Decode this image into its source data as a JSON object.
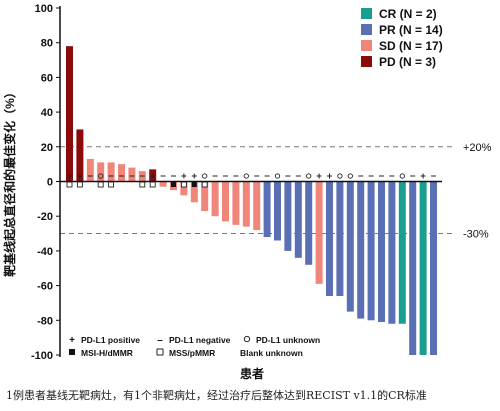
{
  "chart_data": {
    "type": "bar",
    "title": "",
    "ylabel": "靶基线起总直径和的最佳变化（%）",
    "xlabel": "患者",
    "ylim": [
      -100,
      100
    ],
    "yticks": [
      100,
      80,
      60,
      40,
      20,
      0,
      -20,
      -40,
      -60,
      -80,
      -100
    ],
    "reference_lines": [
      {
        "value": 20,
        "label": "+20%"
      },
      {
        "value": -30,
        "label": "-30%"
      }
    ],
    "legend": {
      "placement": "top-right",
      "entries": [
        {
          "key": "CR",
          "label": "CR (N = 2)",
          "color": "#1a9e8f"
        },
        {
          "key": "PR",
          "label": "PR (N = 14)",
          "color": "#5b6fb5"
        },
        {
          "key": "SD",
          "label": "SD (N = 17)",
          "color": "#f0857a"
        },
        {
          "key": "PD",
          "label": "PD (N = 3)",
          "color": "#8b0a0a"
        }
      ]
    },
    "bars": [
      {
        "value": 78,
        "response": "PD",
        "pdl1": "positive",
        "msi": "MSS/pMMR"
      },
      {
        "value": 30,
        "response": "PD",
        "pdl1": "positive",
        "msi": "MSS/pMMR"
      },
      {
        "value": 13,
        "response": "SD",
        "pdl1": "negative",
        "msi": ""
      },
      {
        "value": 11,
        "response": "SD",
        "pdl1": "unknown",
        "msi": "MSS/pMMR"
      },
      {
        "value": 11,
        "response": "SD",
        "pdl1": "negative",
        "msi": "MSS/pMMR"
      },
      {
        "value": 10,
        "response": "SD",
        "pdl1": "negative",
        "msi": ""
      },
      {
        "value": 8,
        "response": "SD",
        "pdl1": "negative",
        "msi": ""
      },
      {
        "value": 6,
        "response": "SD",
        "pdl1": "negative",
        "msi": "MSS/pMMR"
      },
      {
        "value": 7,
        "response": "PD",
        "pdl1": "positive",
        "msi": "MSS/pMMR"
      },
      {
        "value": -3,
        "response": "SD",
        "pdl1": "negative",
        "msi": ""
      },
      {
        "value": -5,
        "response": "SD",
        "pdl1": "negative",
        "msi": "MSI-H/dMMR"
      },
      {
        "value": -8,
        "response": "SD",
        "pdl1": "positive",
        "msi": "MSS/pMMR"
      },
      {
        "value": -12,
        "response": "SD",
        "pdl1": "positive",
        "msi": "MSI-H/dMMR"
      },
      {
        "value": -17,
        "response": "SD",
        "pdl1": "unknown",
        "msi": "MSS/pMMR"
      },
      {
        "value": -20,
        "response": "SD",
        "pdl1": "negative",
        "msi": ""
      },
      {
        "value": -23,
        "response": "SD",
        "pdl1": "negative",
        "msi": ""
      },
      {
        "value": -25,
        "response": "SD",
        "pdl1": "negative",
        "msi": ""
      },
      {
        "value": -26,
        "response": "SD",
        "pdl1": "unknown",
        "msi": ""
      },
      {
        "value": -28,
        "response": "SD",
        "pdl1": "negative",
        "msi": ""
      },
      {
        "value": -32,
        "response": "PR",
        "pdl1": "negative",
        "msi": ""
      },
      {
        "value": -34,
        "response": "PR",
        "pdl1": "unknown",
        "msi": ""
      },
      {
        "value": -40,
        "response": "PR",
        "pdl1": "negative",
        "msi": ""
      },
      {
        "value": -44,
        "response": "PR",
        "pdl1": "negative",
        "msi": ""
      },
      {
        "value": -48,
        "response": "PR",
        "pdl1": "unknown",
        "msi": ""
      },
      {
        "value": -59,
        "response": "SD",
        "pdl1": "positive",
        "msi": ""
      },
      {
        "value": -66,
        "response": "PR",
        "pdl1": "positive",
        "msi": ""
      },
      {
        "value": -66,
        "response": "PR",
        "pdl1": "unknown",
        "msi": ""
      },
      {
        "value": -75,
        "response": "PR",
        "pdl1": "unknown",
        "msi": ""
      },
      {
        "value": -79,
        "response": "PR",
        "pdl1": "negative",
        "msi": ""
      },
      {
        "value": -80,
        "response": "PR",
        "pdl1": "negative",
        "msi": ""
      },
      {
        "value": -81,
        "response": "PR",
        "pdl1": "negative",
        "msi": ""
      },
      {
        "value": -82,
        "response": "PR",
        "pdl1": "negative",
        "msi": ""
      },
      {
        "value": -82,
        "response": "CR",
        "pdl1": "unknown",
        "msi": ""
      },
      {
        "value": -100,
        "response": "PR",
        "pdl1": "negative",
        "msi": ""
      },
      {
        "value": -100,
        "response": "CR",
        "pdl1": "positive",
        "msi": ""
      },
      {
        "value": -100,
        "response": "PR",
        "pdl1": "negative",
        "msi": ""
      }
    ],
    "marker_legend": [
      {
        "symbol": "+",
        "label": "PD-L1 positive"
      },
      {
        "symbol": "–",
        "label": "PD-L1 negative"
      },
      {
        "symbol": "○",
        "label": "PD-L1 unknown"
      },
      {
        "symbol": "■",
        "label": "MSI-H/dMMR"
      },
      {
        "symbol": "□",
        "label": "MSS/pMMR"
      },
      {
        "symbol": "",
        "label": "Blank unknown"
      }
    ]
  },
  "caption": "1例患者基线无靶病灶，有1个非靶病灶，经过治疗后整体达到RECIST v1.1的CR标准"
}
